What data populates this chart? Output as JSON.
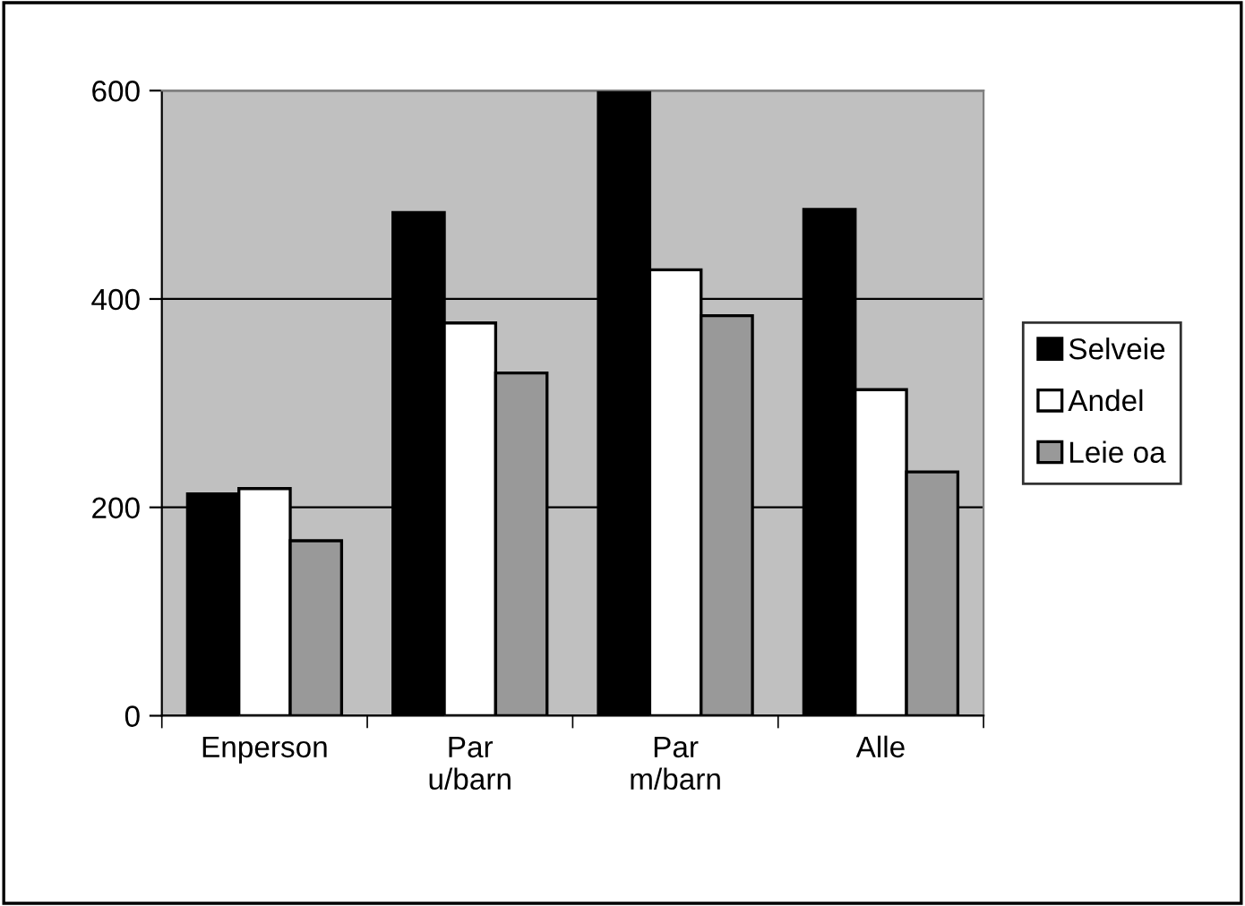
{
  "chart_data": {
    "type": "bar",
    "categories": [
      "Enperson",
      "Par\nu/barn",
      "Par\nm/barn",
      "Alle"
    ],
    "series": [
      {
        "name": "Selveie",
        "color": "#000000",
        "values": [
          213,
          483,
          598,
          486
        ]
      },
      {
        "name": "Andel",
        "color": "#ffffff",
        "values": [
          218,
          377,
          428,
          313
        ]
      },
      {
        "name": "Leie oa",
        "color": "#999999",
        "values": [
          168,
          329,
          384,
          234
        ]
      }
    ],
    "ylim": [
      0,
      600
    ],
    "yticks": [
      0,
      200,
      400,
      600
    ],
    "grid": "y",
    "legend": "right"
  }
}
